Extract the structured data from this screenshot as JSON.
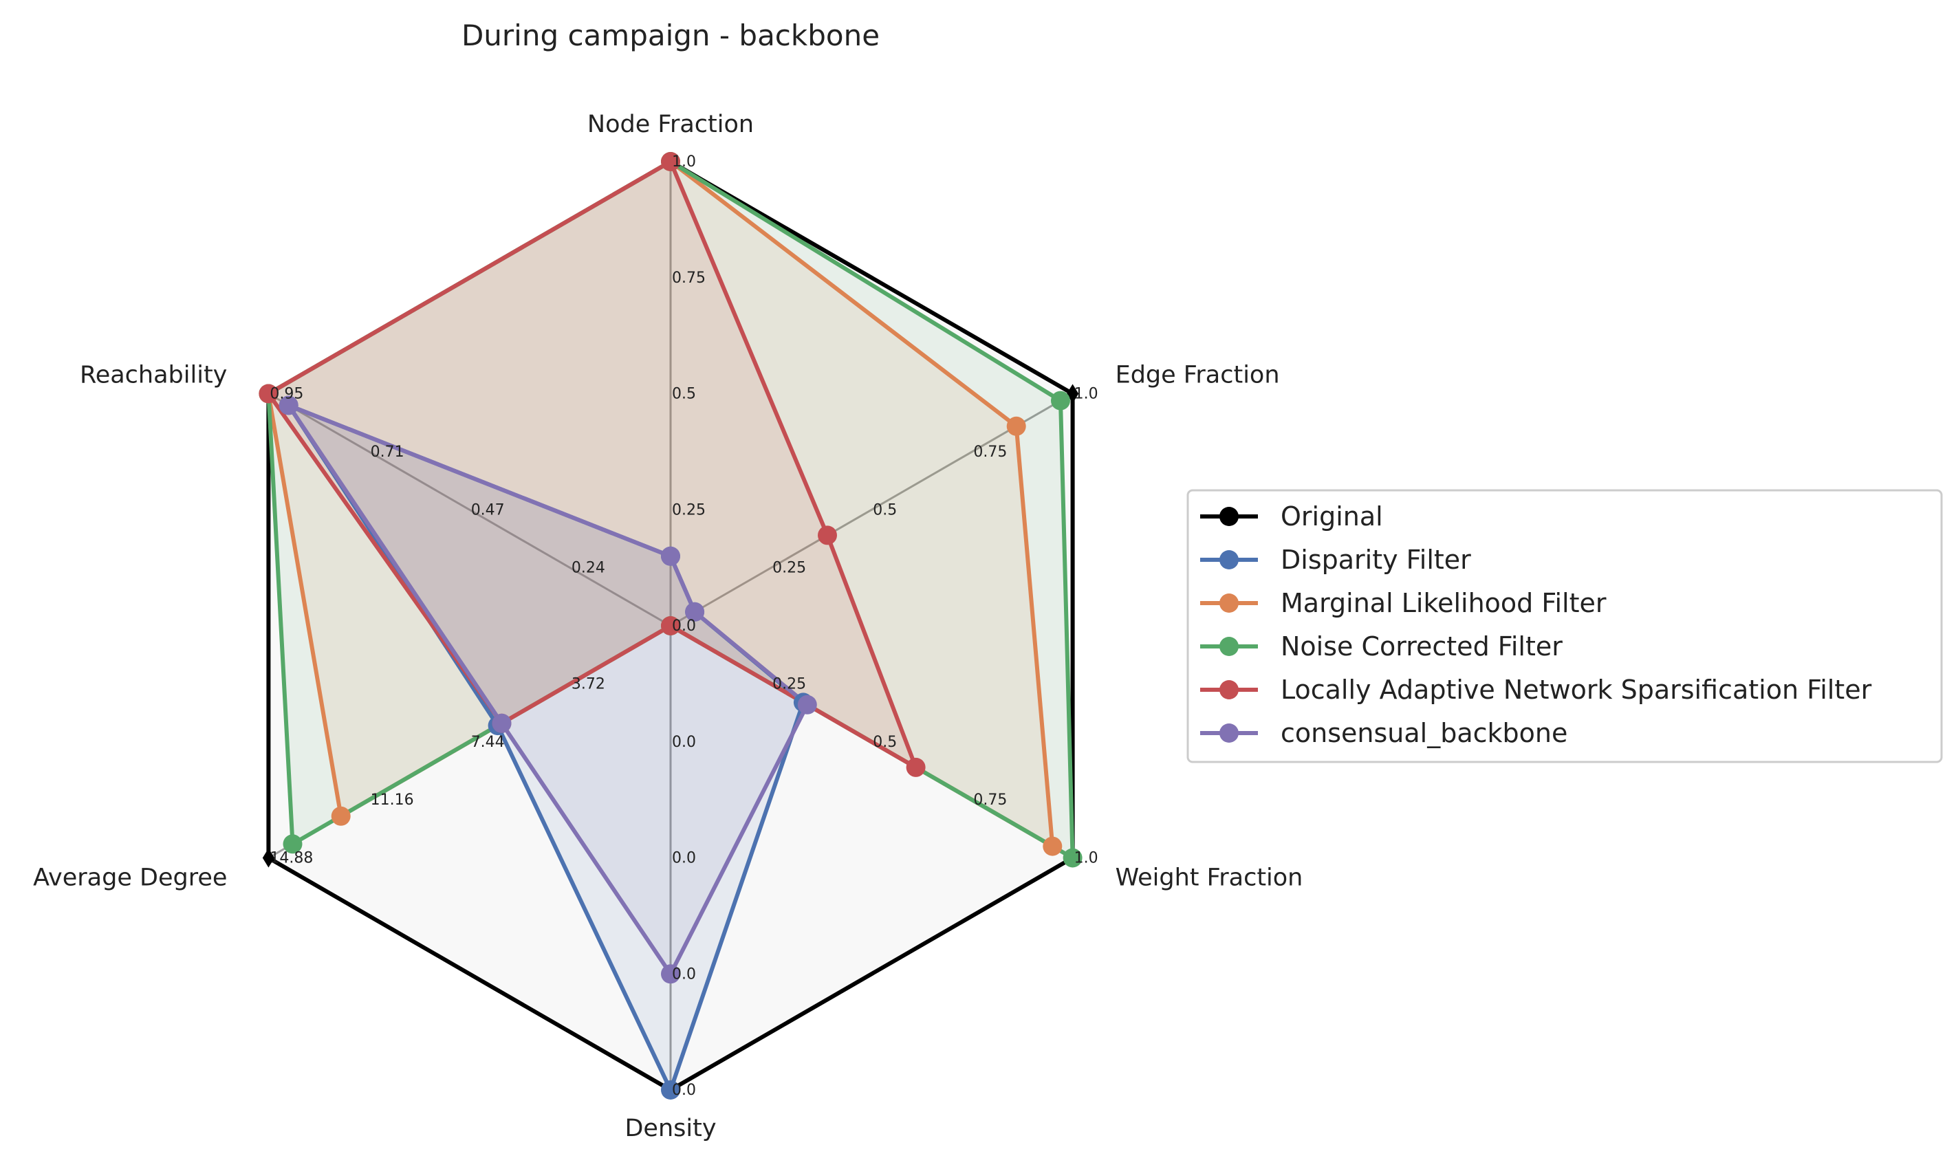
{
  "chart_data": {
    "type": "radar",
    "title": "During campaign - backbone",
    "axes": [
      "Node Fraction",
      "Edge Fraction",
      "Weight Fraction",
      "Density",
      "Average Degree",
      "Reachability"
    ],
    "ticks": {
      "Node Fraction": [
        "0.25",
        "0.5",
        "0.75",
        "1.0"
      ],
      "Edge Fraction": [
        "0.25",
        "0.5",
        "0.75",
        "1.0"
      ],
      "Weight Fraction": [
        "0.25",
        "0.5",
        "0.75",
        "1.0"
      ],
      "Density": [
        "0.0",
        "0.0",
        "0.0",
        "0.0"
      ],
      "Average Degree": [
        "3.72",
        "7.44",
        "11.16",
        "14.88"
      ],
      "Reachability": [
        "0.24",
        "0.47",
        "0.71",
        "0.95"
      ]
    },
    "center_tick": "0.0",
    "series": [
      {
        "name": "Original",
        "color": "#000000",
        "marker": "diamond",
        "fill": "#b8b8b8",
        "values": [
          1.0,
          1.0,
          1.0,
          0.0,
          14.88,
          0.95
        ],
        "normalized": [
          1.0,
          1.0,
          1.0,
          1.0,
          1.0,
          1.0
        ]
      },
      {
        "name": "Disparity Filter",
        "color": "#4c72b0",
        "marker": "circle",
        "fill": "#4c72b0",
        "values": [
          0.15,
          0.06,
          0.33,
          0.0,
          6.4,
          0.9
        ],
        "normalized": [
          0.15,
          0.06,
          0.33,
          1.0,
          0.43,
          0.95
        ]
      },
      {
        "name": "Marginal Likelihood Filter",
        "color": "#dd8452",
        "marker": "circle",
        "fill": "#dd8452",
        "values": [
          1.0,
          0.86,
          0.95,
          0.0,
          12.2,
          0.95
        ],
        "normalized": [
          1.0,
          0.86,
          0.95,
          0.0,
          0.82,
          1.0
        ]
      },
      {
        "name": "Noise Corrected Filter",
        "color": "#55a868",
        "marker": "circle",
        "fill": "#55a868",
        "values": [
          1.0,
          0.97,
          1.0,
          0.0,
          14.0,
          0.95
        ],
        "normalized": [
          1.0,
          0.97,
          1.0,
          0.0,
          0.94,
          1.0
        ]
      },
      {
        "name": "Locally Adaptive Network Sparsification Filter",
        "color": "#c44e52",
        "marker": "circle",
        "fill": "#c44e52",
        "values": [
          1.0,
          0.39,
          0.61,
          0.0,
          6.2,
          0.95
        ],
        "normalized": [
          1.0,
          0.39,
          0.61,
          0.0,
          0.42,
          1.0
        ]
      },
      {
        "name": "consensual_backbone",
        "color": "#8172b3",
        "marker": "circle",
        "fill": "#8172b3",
        "values": [
          0.15,
          0.06,
          0.34,
          0.0,
          6.2,
          0.9
        ],
        "normalized": [
          0.15,
          0.06,
          0.34,
          0.75,
          0.42,
          0.95
        ]
      }
    ],
    "legend_position": "right",
    "grid": true
  }
}
